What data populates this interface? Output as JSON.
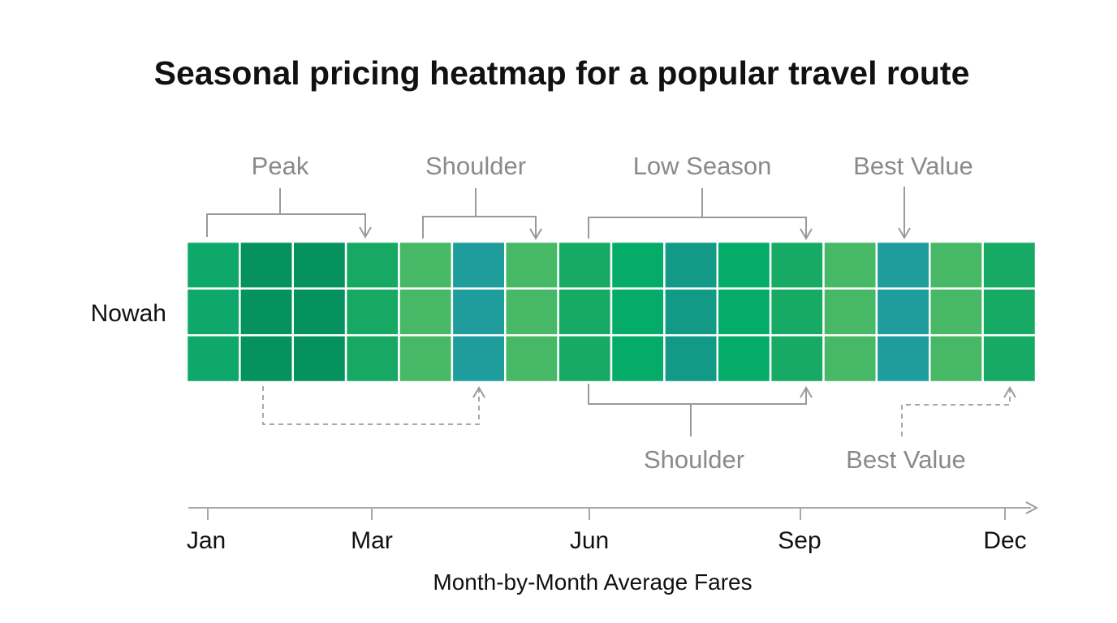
{
  "chart_data": {
    "type": "heatmap",
    "title": "Seasonal pricing heatmap for a popular travel route",
    "row_label": "Nowah",
    "columns": 16,
    "rows": 3,
    "column_colors": [
      "#0da86a",
      "#06925f",
      "#06925f",
      "#17a964",
      "#47b866",
      "#1e9d9c",
      "#47b866",
      "#16aa64",
      "#04ab69",
      "#129a87",
      "#04ab69",
      "#16aa64",
      "#47b866",
      "#1e9d9c",
      "#47b866",
      "#16aa64"
    ],
    "x_axis": {
      "ticks": [
        "Jan",
        "Mar",
        "Jun",
        "Sep",
        "Dec"
      ],
      "label": "Month-by-Month Average Fares"
    },
    "annotations_above": [
      "Peak",
      "Shoulder",
      "Low Season",
      "Best Value"
    ],
    "annotations_below": [
      "Shoulder",
      "Best Value"
    ]
  }
}
